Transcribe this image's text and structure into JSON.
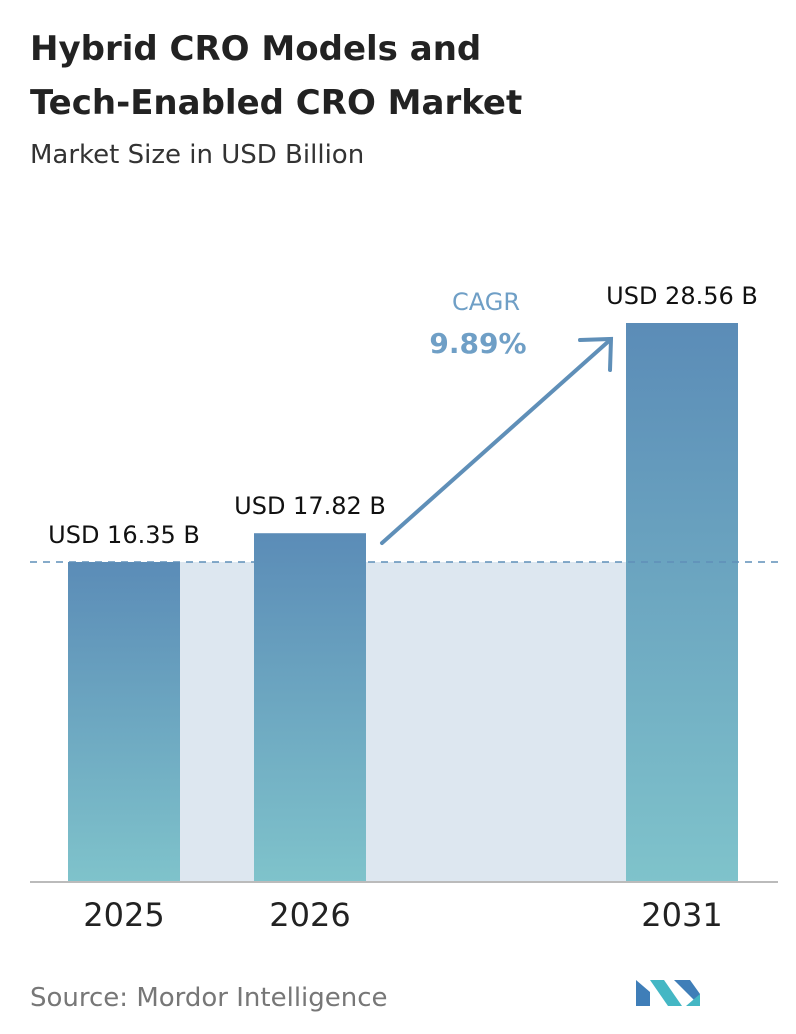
{
  "chart_data": {
    "type": "bar",
    "title": [
      "Hybrid CRO Models and",
      "Tech-Enabled CRO Market"
    ],
    "subtitle": "Market Size in USD Billion",
    "categories": [
      "2025",
      "2026",
      "2031"
    ],
    "values": [
      16.35,
      17.82,
      28.56
    ],
    "value_labels": [
      "USD 16.35 B",
      "USD 17.82 B",
      "USD 28.56 B"
    ],
    "annotation": {
      "label": "CAGR",
      "value": "9.89%"
    },
    "source": "Source: Mordor Intelligence"
  }
}
